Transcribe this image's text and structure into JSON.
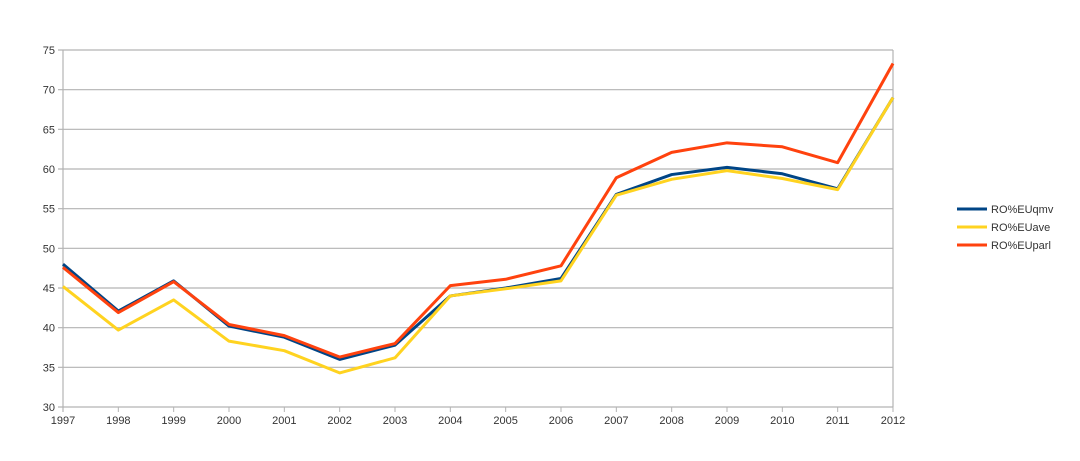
{
  "chart_data": {
    "type": "line",
    "title": "",
    "xlabel": "",
    "ylabel": "",
    "x": [
      "1997",
      "1998",
      "1999",
      "2000",
      "2001",
      "2002",
      "2003",
      "2004",
      "2005",
      "2006",
      "2007",
      "2008",
      "2009",
      "2010",
      "2011",
      "2012"
    ],
    "ylim": [
      30,
      75
    ],
    "yticks": [
      30,
      35,
      40,
      45,
      50,
      55,
      60,
      65,
      70,
      75
    ],
    "grid": true,
    "legend_position": "right",
    "series": [
      {
        "name": "RO%EUqmv",
        "color": "#004586",
        "values": [
          48,
          42.1,
          45.9,
          40.2,
          38.8,
          36,
          37.8,
          44,
          45,
          46.2,
          56.8,
          59.3,
          60.2,
          59.4,
          57.5,
          69
        ]
      },
      {
        "name": "RO%EUave",
        "color": "#ffd320",
        "values": [
          45.2,
          39.7,
          43.5,
          38.3,
          37.1,
          34.3,
          36.2,
          44,
          44.9,
          45.9,
          56.7,
          58.7,
          59.8,
          58.8,
          57.4,
          69
        ]
      },
      {
        "name": "RO%EUparl",
        "color": "#ff420e",
        "values": [
          47.6,
          41.9,
          45.8,
          40.4,
          39,
          36.3,
          38,
          45.3,
          46.1,
          47.8,
          58.9,
          62.1,
          63.3,
          62.8,
          60.8,
          73.3
        ]
      }
    ]
  }
}
